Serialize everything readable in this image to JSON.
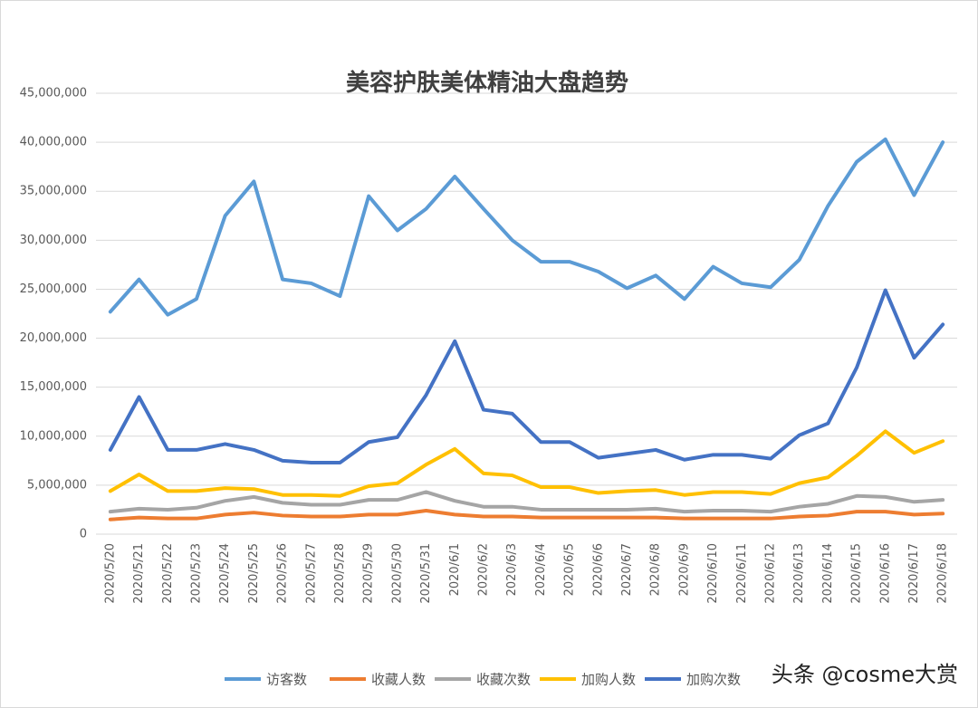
{
  "chart_data": {
    "type": "line",
    "title": "美容护肤美体精油大盘趋势",
    "categories": [
      "2020/5/20",
      "2020/5/21",
      "2020/5/22",
      "2020/5/23",
      "2020/5/24",
      "2020/5/25",
      "2020/5/26",
      "2020/5/27",
      "2020/5/28",
      "2020/5/29",
      "2020/5/30",
      "2020/5/31",
      "2020/6/1",
      "2020/6/2",
      "2020/6/3",
      "2020/6/4",
      "2020/6/5",
      "2020/6/6",
      "2020/6/7",
      "2020/6/8",
      "2020/6/9",
      "2020/6/10",
      "2020/6/11",
      "2020/6/12",
      "2020/6/13",
      "2020/6/14",
      "2020/6/15",
      "2020/6/16",
      "2020/6/17",
      "2020/6/18"
    ],
    "series": [
      {
        "name": "访客数",
        "color": "#5b9bd5",
        "values": [
          22700000,
          26000000,
          22400000,
          24000000,
          32500000,
          36000000,
          26000000,
          25600000,
          24300000,
          34500000,
          31000000,
          33200000,
          36500000,
          33200000,
          30000000,
          27800000,
          27800000,
          26800000,
          25100000,
          26400000,
          24000000,
          27300000,
          25600000,
          25200000,
          28000000,
          33500000,
          38000000,
          40300000,
          34600000,
          40000000
        ]
      },
      {
        "name": "收藏人数",
        "color": "#ed7d31",
        "values": [
          1500000,
          1700000,
          1600000,
          1600000,
          2000000,
          2200000,
          1900000,
          1800000,
          1800000,
          2000000,
          2000000,
          2400000,
          2000000,
          1800000,
          1800000,
          1700000,
          1700000,
          1700000,
          1700000,
          1700000,
          1600000,
          1600000,
          1600000,
          1600000,
          1800000,
          1900000,
          2300000,
          2300000,
          2000000,
          2100000
        ]
      },
      {
        "name": "收藏次数",
        "color": "#a5a5a5",
        "values": [
          2300000,
          2600000,
          2500000,
          2700000,
          3400000,
          3800000,
          3200000,
          3000000,
          3000000,
          3500000,
          3500000,
          4300000,
          3400000,
          2800000,
          2800000,
          2500000,
          2500000,
          2500000,
          2500000,
          2600000,
          2300000,
          2400000,
          2400000,
          2300000,
          2800000,
          3100000,
          3900000,
          3800000,
          3300000,
          3500000
        ]
      },
      {
        "name": "加购人数",
        "color": "#ffc000",
        "values": [
          4400000,
          6100000,
          4400000,
          4400000,
          4700000,
          4600000,
          4000000,
          4000000,
          3900000,
          4900000,
          5200000,
          7100000,
          8700000,
          6200000,
          6000000,
          4800000,
          4800000,
          4200000,
          4400000,
          4500000,
          4000000,
          4300000,
          4300000,
          4100000,
          5200000,
          5800000,
          8000000,
          10500000,
          8300000,
          9500000
        ]
      },
      {
        "name": "加购次数",
        "color": "#4472c4",
        "values": [
          8600000,
          14000000,
          8600000,
          8600000,
          9200000,
          8600000,
          7500000,
          7300000,
          7300000,
          9400000,
          9900000,
          14200000,
          19700000,
          12700000,
          12300000,
          9400000,
          9400000,
          7800000,
          8200000,
          8600000,
          7600000,
          8100000,
          8100000,
          7700000,
          10100000,
          11300000,
          17000000,
          24900000,
          18000000,
          21400000
        ]
      }
    ],
    "ylim": [
      0,
      45000000
    ],
    "yticks": [
      0,
      {
        "value": 5000000,
        "label": "5,000,000"
      },
      {
        "value": 10000000,
        "label": "10,000,000"
      },
      {
        "value": 15000000,
        "label": "15,000,000"
      },
      {
        "value": 20000000,
        "label": "20,000,000"
      },
      {
        "value": 25000000,
        "label": "25,000,000"
      },
      {
        "value": 30000000,
        "label": "30,000,000"
      },
      {
        "value": 35000000,
        "label": "35,000,000"
      },
      {
        "value": 40000000,
        "label": "40,000,000"
      },
      {
        "value": 45000000,
        "label": "45,000,000"
      }
    ],
    "grid": true,
    "legend": "bottom",
    "watermark": "头条 @cosme大赏"
  }
}
